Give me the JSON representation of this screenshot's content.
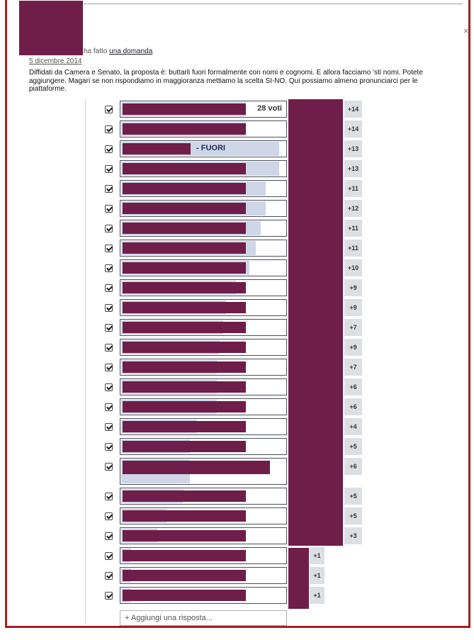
{
  "post": {
    "author_action": "ha fatto",
    "question_link": "una domanda",
    "date": "5 dicembre 2014",
    "question_text": "Diffidati da Camera e Senato, la proposta è: buttarli fuori formalmente con nomi e cognomi. E allora facciamo 'sti nomi. Potete aggiungere. Magari se non rispondiamo in maggioranza mettiamo la scelta SI-NO. Qui possiamo almeno pronunciarci per le piattaforme."
  },
  "poll": {
    "add_placeholder": "+ Aggiungi una risposta...",
    "options": [
      {
        "votes_label": "28 voti",
        "count": "+14",
        "level": 0.76
      },
      {
        "count": "+14",
        "level": 0.76
      },
      {
        "extra_label": "- FUORI",
        "count": "+13",
        "level": 0.96
      },
      {
        "count": "+13",
        "level": 0.96
      },
      {
        "count": "+11",
        "level": 0.88
      },
      {
        "count": "+12",
        "level": 0.88
      },
      {
        "count": "+11",
        "level": 0.85
      },
      {
        "count": "+11",
        "level": 0.82
      },
      {
        "count": "+10",
        "level": 0.78
      },
      {
        "count": "+9",
        "level": 0.7
      },
      {
        "count": "+9",
        "level": 0.64
      },
      {
        "count": "+7",
        "level": 0.62
      },
      {
        "count": "+9",
        "level": 0.6
      },
      {
        "count": "+7",
        "level": 0.58
      },
      {
        "count": "+6",
        "level": 0.58
      },
      {
        "count": "+6",
        "level": 0.58
      },
      {
        "count": "+4",
        "level": 0.46
      },
      {
        "count": "+5",
        "level": 0.42
      },
      {
        "count": "+6",
        "level": 0.42
      },
      {
        "count": "+5",
        "level": 0.38
      },
      {
        "count": "+5",
        "level": 0.28
      },
      {
        "count": "+3",
        "level": 0.22
      },
      {
        "count": "+1",
        "level": 0.06
      },
      {
        "count": "+1",
        "level": 0.06
      },
      {
        "count": "+1",
        "level": 0.06
      }
    ]
  }
}
